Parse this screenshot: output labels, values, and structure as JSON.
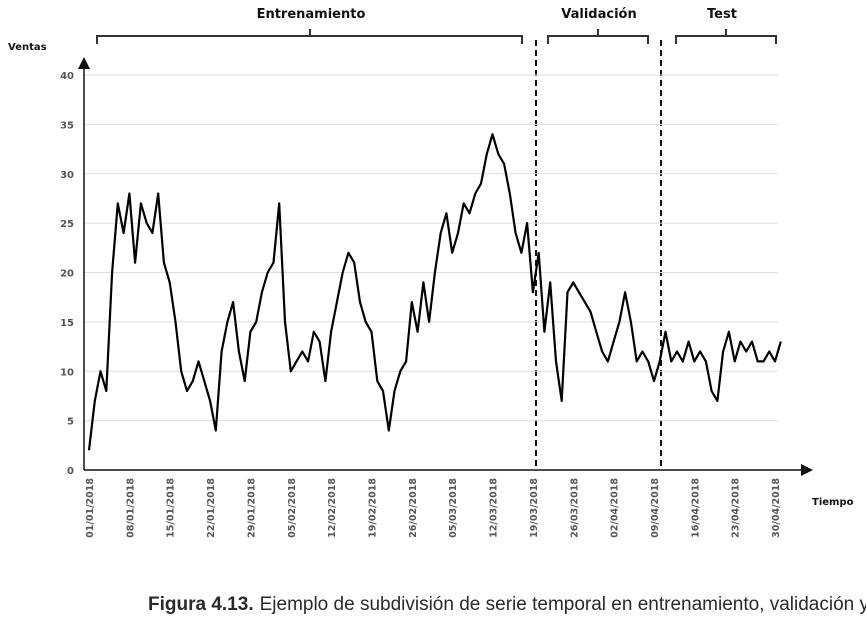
{
  "chart_data": {
    "type": "line",
    "y_label": "Ventas",
    "x_label": "Tiempo",
    "sections": [
      "Entrenamiento",
      "Validación",
      "Test"
    ],
    "caption_label": "Figura 4.13.",
    "caption_text": "Ejemplo de subdivisión de serie temporal en entrenamiento, validación y test.",
    "categories": [
      "01/01/2018",
      null,
      null,
      null,
      null,
      null,
      null,
      "08/01/2018",
      null,
      null,
      null,
      null,
      null,
      null,
      "15/01/2018",
      null,
      null,
      null,
      null,
      null,
      null,
      "22/01/2018",
      null,
      null,
      null,
      null,
      null,
      null,
      "29/01/2018",
      null,
      null,
      null,
      null,
      null,
      null,
      "05/02/2018",
      null,
      null,
      null,
      null,
      null,
      null,
      "12/02/2018",
      null,
      null,
      null,
      null,
      null,
      null,
      "19/02/2018",
      null,
      null,
      null,
      null,
      null,
      null,
      "26/02/2018",
      null,
      null,
      null,
      null,
      null,
      null,
      "05/03/2018",
      null,
      null,
      null,
      null,
      null,
      null,
      "12/03/2018",
      null,
      null,
      null,
      null,
      null,
      null,
      "19/03/2018",
      null,
      null,
      null,
      null,
      null,
      null,
      "26/03/2018",
      null,
      null,
      null,
      null,
      null,
      null,
      "02/04/2018",
      null,
      null,
      null,
      null,
      null,
      null,
      "09/04/2018",
      null,
      null,
      null,
      null,
      null,
      null,
      "16/04/2018",
      null,
      null,
      null,
      null,
      null,
      null,
      "23/04/2018",
      null,
      null,
      null,
      null,
      null,
      null,
      "30/04/2018",
      null
    ],
    "values": [
      2,
      7,
      10,
      8,
      20,
      27,
      24,
      28,
      21,
      27,
      25,
      24,
      28,
      21,
      19,
      15,
      10,
      8,
      9,
      11,
      9,
      7,
      4,
      12,
      15,
      17,
      12,
      9,
      14,
      15,
      18,
      20,
      21,
      27,
      15,
      10,
      11,
      12,
      11,
      14,
      13,
      9,
      14,
      17,
      20,
      22,
      21,
      17,
      15,
      14,
      9,
      8,
      4,
      8,
      10,
      11,
      17,
      14,
      19,
      15,
      20,
      24,
      26,
      22,
      24,
      27,
      26,
      28,
      29,
      32,
      34,
      32,
      31,
      28,
      24,
      22,
      25,
      18,
      22,
      14,
      19,
      11,
      7,
      18,
      19,
      18,
      17,
      16,
      14,
      12,
      11,
      13,
      15,
      18,
      15,
      11,
      12,
      11,
      9,
      11,
      14,
      11,
      12,
      11,
      13,
      11,
      12,
      11,
      8,
      7,
      12,
      14,
      11,
      13,
      12,
      13,
      11,
      11,
      12,
      11,
      13
    ],
    "color": "#000000",
    "ylim": [
      0,
      41
    ],
    "yticks": [
      0,
      5,
      10,
      15,
      20,
      25,
      30,
      35,
      40
    ],
    "grid": true
  }
}
